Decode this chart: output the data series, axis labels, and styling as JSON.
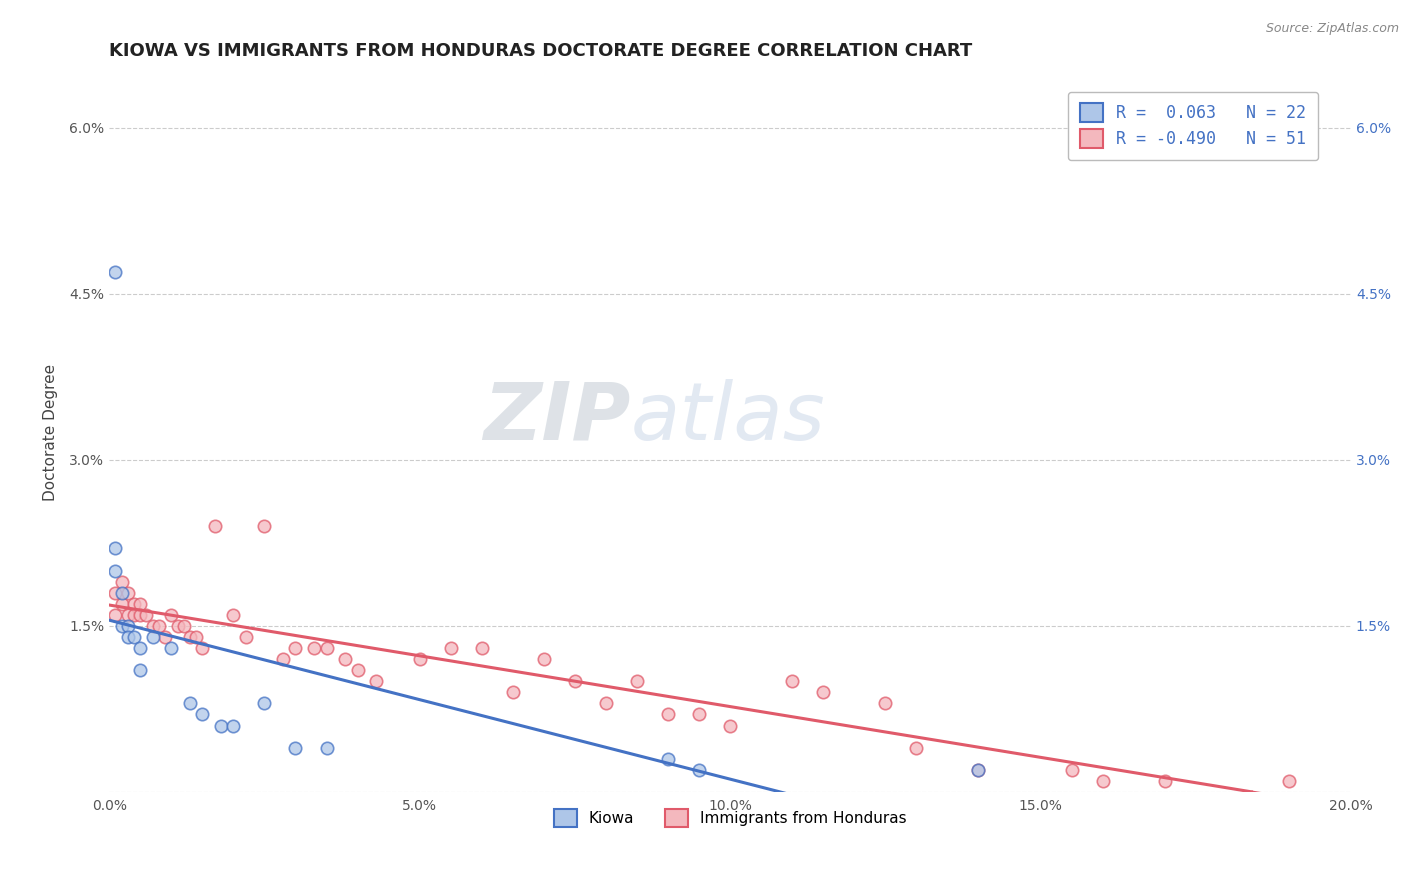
{
  "title": "KIOWA VS IMMIGRANTS FROM HONDURAS DOCTORATE DEGREE CORRELATION CHART",
  "source": "Source: ZipAtlas.com",
  "ylabel": "Doctorate Degree",
  "xlabel": "",
  "legend_label_1": "Kiowa",
  "legend_label_2": "Immigrants from Honduras",
  "watermark_zip": "ZIP",
  "watermark_atlas": "atlas",
  "xlim": [
    0.0,
    0.2
  ],
  "ylim": [
    0.0,
    0.065
  ],
  "xticks": [
    0.0,
    0.05,
    0.1,
    0.15,
    0.2
  ],
  "xtick_labels": [
    "0.0%",
    "5.0%",
    "10.0%",
    "15.0%",
    "20.0%"
  ],
  "yticks": [
    0.0,
    0.015,
    0.03,
    0.045,
    0.06
  ],
  "ytick_labels": [
    "",
    "1.5%",
    "3.0%",
    "4.5%",
    "6.0%"
  ],
  "R1": 0.063,
  "N1": 22,
  "R2": -0.49,
  "N2": 51,
  "color1": "#aec6e8",
  "color2": "#f4b8be",
  "line_color1": "#4472c4",
  "line_color2": "#e05a6a",
  "kiowa_x": [
    0.001,
    0.001,
    0.002,
    0.002,
    0.003,
    0.003,
    0.004,
    0.005,
    0.005,
    0.007,
    0.01,
    0.013,
    0.015,
    0.018,
    0.02,
    0.025,
    0.03,
    0.035,
    0.09,
    0.095,
    0.14,
    0.001
  ],
  "kiowa_y": [
    0.022,
    0.02,
    0.018,
    0.015,
    0.015,
    0.014,
    0.014,
    0.013,
    0.011,
    0.014,
    0.013,
    0.008,
    0.007,
    0.006,
    0.006,
    0.008,
    0.004,
    0.004,
    0.003,
    0.002,
    0.002,
    0.047
  ],
  "honduras_x": [
    0.001,
    0.001,
    0.002,
    0.002,
    0.003,
    0.003,
    0.004,
    0.004,
    0.005,
    0.005,
    0.006,
    0.007,
    0.008,
    0.009,
    0.01,
    0.011,
    0.012,
    0.013,
    0.014,
    0.015,
    0.017,
    0.02,
    0.022,
    0.025,
    0.028,
    0.03,
    0.033,
    0.035,
    0.038,
    0.04,
    0.043,
    0.05,
    0.055,
    0.06,
    0.065,
    0.07,
    0.075,
    0.08,
    0.085,
    0.09,
    0.095,
    0.1,
    0.11,
    0.115,
    0.125,
    0.13,
    0.14,
    0.155,
    0.16,
    0.17,
    0.19
  ],
  "honduras_y": [
    0.018,
    0.016,
    0.019,
    0.017,
    0.018,
    0.016,
    0.017,
    0.016,
    0.017,
    0.016,
    0.016,
    0.015,
    0.015,
    0.014,
    0.016,
    0.015,
    0.015,
    0.014,
    0.014,
    0.013,
    0.024,
    0.016,
    0.014,
    0.024,
    0.012,
    0.013,
    0.013,
    0.013,
    0.012,
    0.011,
    0.01,
    0.012,
    0.013,
    0.013,
    0.009,
    0.012,
    0.01,
    0.008,
    0.01,
    0.007,
    0.007,
    0.006,
    0.01,
    0.009,
    0.008,
    0.004,
    0.002,
    0.002,
    0.001,
    0.001,
    0.001
  ],
  "background_color": "#ffffff",
  "grid_color": "#cccccc",
  "title_fontsize": 13,
  "axis_fontsize": 11,
  "tick_fontsize": 10,
  "marker_size": 80,
  "marker_edge_width": 1.2
}
